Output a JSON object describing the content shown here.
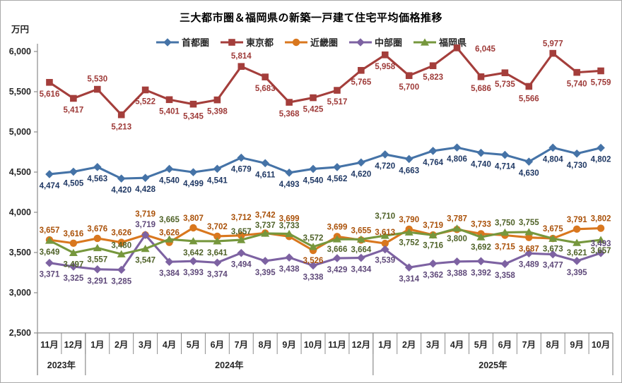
{
  "chart_data": {
    "type": "line",
    "title": "三大都市圏＆福岡県の新築一戸建て住宅平均価格推移",
    "ylabel": "万円",
    "xlabel": "",
    "grid": false,
    "legend_position": "top",
    "ylim": [
      2500,
      6200
    ],
    "yticks": [
      2500,
      3000,
      3500,
      4000,
      4500,
      5000,
      5500,
      6000
    ],
    "categories": [
      "11月",
      "12月",
      "1月",
      "2月",
      "3月",
      "4月",
      "5月",
      "6月",
      "7月",
      "8月",
      "9月",
      "10月",
      "11月",
      "12月",
      "1月",
      "2月",
      "3月",
      "4月",
      "5月",
      "6月",
      "7月",
      "8月",
      "9月",
      "10月"
    ],
    "year_groups": [
      {
        "label": "2023年",
        "span": 2
      },
      {
        "label": "2024年",
        "span": 12
      },
      {
        "label": "2025年",
        "span": 10
      }
    ],
    "series": [
      {
        "name": "首都圏",
        "marker": "diamond",
        "color": "#4573A7",
        "label_color": "#1F3864",
        "values": [
          4474,
          4505,
          4563,
          4420,
          4428,
          4540,
          4499,
          4541,
          4679,
          4611,
          4493,
          4540,
          4562,
          4620,
          4720,
          4663,
          4764,
          4806,
          4740,
          4714,
          4630,
          4804,
          4730,
          4802
        ]
      },
      {
        "name": "東京都",
        "marker": "square",
        "color": "#A43E3B",
        "label_color": "#9E3A38",
        "values": [
          5616,
          5417,
          5530,
          5213,
          5522,
          5401,
          5345,
          5398,
          5814,
          5683,
          5368,
          5425,
          5517,
          5765,
          5958,
          5700,
          5823,
          6045,
          5686,
          5735,
          5566,
          5977,
          5740,
          5759
        ]
      },
      {
        "name": "近畿圏",
        "marker": "circle",
        "color": "#D9771E",
        "label_color": "#AA5109",
        "values": [
          3657,
          3616,
          3676,
          3626,
          3719,
          3626,
          3807,
          3702,
          3712,
          3742,
          3699,
          3526,
          3699,
          3655,
          3613,
          3790,
          3719,
          3787,
          3733,
          3715,
          3687,
          3675,
          3791,
          3802
        ]
      },
      {
        "name": "中部圏",
        "marker": "diamond",
        "color": "#7D62A2",
        "label_color": "#5F497A",
        "values": [
          3371,
          3325,
          3291,
          3285,
          3719,
          3384,
          3393,
          3374,
          3494,
          3395,
          3438,
          3338,
          3429,
          3434,
          3539,
          3314,
          3362,
          3388,
          3392,
          3358,
          3489,
          3477,
          3395,
          3493
        ]
      },
      {
        "name": "福岡県",
        "marker": "triangle",
        "color": "#76973D",
        "label_color": "#4F6228",
        "values": [
          3649,
          3497,
          3557,
          3480,
          3547,
          3665,
          3642,
          3641,
          3657,
          3737,
          3733,
          3572,
          3666,
          3664,
          3710,
          3752,
          3716,
          3800,
          3692,
          3750,
          3755,
          3673,
          3621,
          3657
        ]
      }
    ]
  }
}
